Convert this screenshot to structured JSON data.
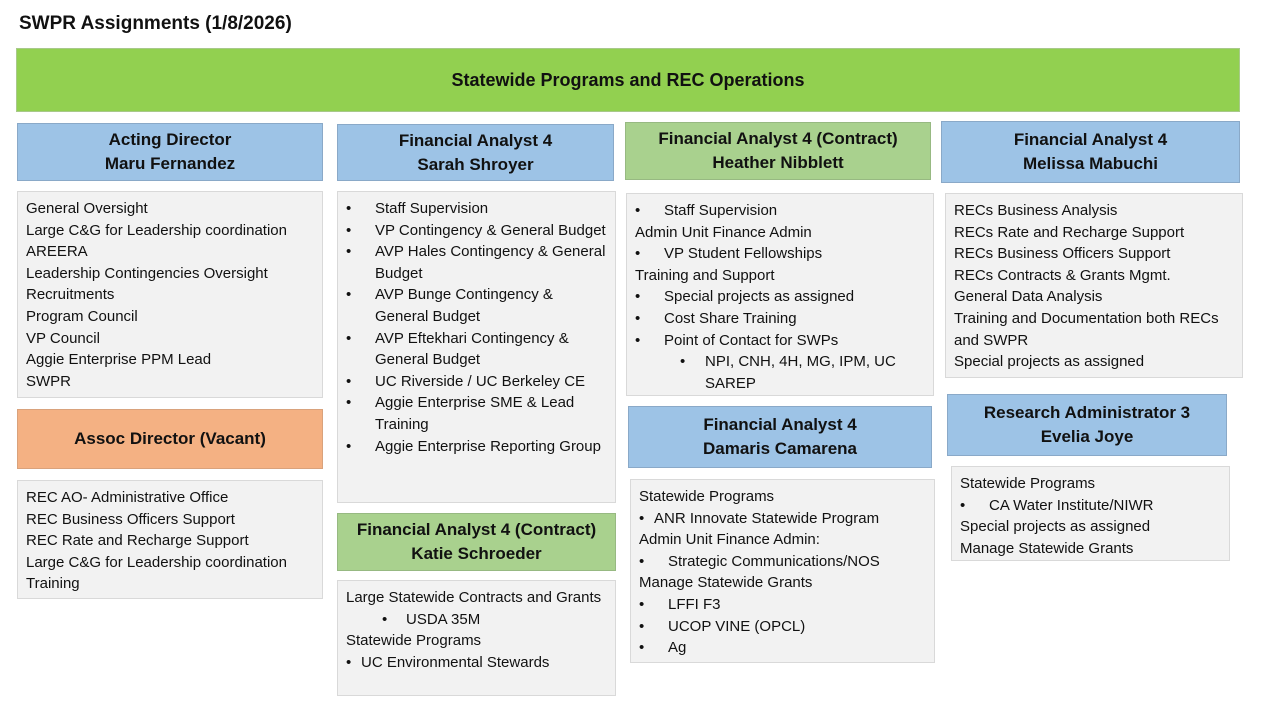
{
  "title": "SWPR Assignments (1/8/2026)",
  "banner": "Statewide Programs and REC Operations",
  "colors": {
    "banner": "#92d050",
    "blue_header": "#9dc3e6",
    "green_header": "#a9d18e",
    "orange_header": "#f4b183",
    "box": "#f2f2f2"
  },
  "boxes": [
    {
      "id": "fernandez",
      "role": "Acting Director",
      "name": "Maru Fernandez",
      "color": "blue",
      "lines": [
        {
          "t": "General Oversight",
          "s": ""
        },
        {
          "t": "Large C&G for Leadership coordination",
          "s": ""
        },
        {
          "t": "AREERA",
          "s": ""
        },
        {
          "t": "Leadership Contingencies Oversight",
          "s": ""
        },
        {
          "t": "Recruitments",
          "s": ""
        },
        {
          "t": "Program Council",
          "s": ""
        },
        {
          "t": "VP Council",
          "s": ""
        },
        {
          "t": "Aggie Enterprise PPM Lead",
          "s": ""
        },
        {
          "t": "SWPR",
          "s": ""
        }
      ]
    },
    {
      "id": "assoc",
      "role": "Assoc Director (Vacant)",
      "name": "",
      "color": "orange",
      "lines": [
        {
          "t": "REC AO- Administrative Office",
          "s": ""
        },
        {
          "t": "REC Business Officers Support",
          "s": ""
        },
        {
          "t": "REC Rate and Recharge Support",
          "s": ""
        },
        {
          "t": "Large C&G for Leadership coordination",
          "s": ""
        },
        {
          "t": "Training",
          "s": ""
        }
      ]
    },
    {
      "id": "shroyer",
      "role": "Financial Analyst 4",
      "name": "Sarah Shroyer",
      "color": "blue",
      "lines": [
        {
          "t": "Staff Supervision",
          "s": "b"
        },
        {
          "t": "VP Contingency & General Budget",
          "s": "b"
        },
        {
          "t": "AVP Hales Contingency & General Budget",
          "s": "b"
        },
        {
          "t": "AVP Bunge Contingency & General Budget",
          "s": "b"
        },
        {
          "t": "AVP Eftekhari Contingency & General Budget",
          "s": "b"
        },
        {
          "t": "UC Riverside / UC Berkeley CE",
          "s": "b"
        },
        {
          "t": "Aggie Enterprise SME & Lead Training",
          "s": "b"
        },
        {
          "t": "Aggie Enterprise Reporting Group",
          "s": "b"
        }
      ]
    },
    {
      "id": "schroeder",
      "role": "Financial Analyst 4 (Contract)",
      "name": "Katie Schroeder",
      "color": "lgreen",
      "lines": [
        {
          "t": "Large Statewide Contracts and Grants",
          "s": ""
        },
        {
          "t": "USDA 35M",
          "s": "b2t"
        },
        {
          "t": "Statewide Programs",
          "s": ""
        },
        {
          "t": "UC Environmental Stewards",
          "s": "bt"
        }
      ]
    },
    {
      "id": "nibblett",
      "role": "Financial Analyst 4 (Contract)",
      "name": "Heather Nibblett",
      "color": "lgreen",
      "lines": [
        {
          "t": "Staff Supervision",
          "s": "bw"
        },
        {
          "t": "Admin Unit Finance Admin",
          "s": ""
        },
        {
          "t": "VP Student Fellowships",
          "s": "bw"
        },
        {
          "t": "Training and Support",
          "s": ""
        },
        {
          "t": "Special projects as assigned",
          "s": "b"
        },
        {
          "t": "Cost Share Training",
          "s": "b"
        },
        {
          "t": "Point of Contact for SWPs",
          "s": "b"
        },
        {
          "t": "NPI, CNH, 4H, MG, IPM, UC SAREP",
          "s": "b2"
        }
      ]
    },
    {
      "id": "camarena",
      "role": "Financial Analyst 4",
      "name": "Damaris Camarena",
      "color": "blue",
      "lines": [
        {
          "t": "Statewide Programs",
          "s": ""
        },
        {
          "t": "ANR Innovate Statewide Program",
          "s": "bt"
        },
        {
          "t": "Admin Unit Finance Admin:",
          "s": ""
        },
        {
          "t": "Strategic Communications/NOS",
          "s": "b"
        },
        {
          "t": "Manage Statewide Grants",
          "s": ""
        },
        {
          "t": "LFFI F3",
          "s": "b"
        },
        {
          "t": "UCOP VINE (OPCL)",
          "s": "b"
        },
        {
          "t": "Ag",
          "s": "b"
        }
      ]
    },
    {
      "id": "mabuchi",
      "role": "Financial Analyst 4",
      "name": "Melissa Mabuchi",
      "color": "blue",
      "lines": [
        {
          "t": "RECs Business Analysis",
          "s": ""
        },
        {
          "t": "RECs Rate and Recharge Support",
          "s": ""
        },
        {
          "t": "RECs Business Officers Support",
          "s": ""
        },
        {
          "t": "RECs Contracts & Grants Mgmt.",
          "s": ""
        },
        {
          "t": "General Data Analysis",
          "s": ""
        },
        {
          "t": "Training and Documentation both RECs and SWPR",
          "s": ""
        },
        {
          "t": "Special projects as assigned",
          "s": ""
        }
      ]
    },
    {
      "id": "joye",
      "role": "Research Administrator 3",
      "name": "Evelia Joye",
      "color": "blue",
      "lines": [
        {
          "t": "Statewide Programs",
          "s": ""
        },
        {
          "t": "CA Water Institute/NIWR",
          "s": "b"
        },
        {
          "t": "Special projects as assigned",
          "s": ""
        },
        {
          "t": "Manage Statewide Grants",
          "s": ""
        }
      ]
    }
  ]
}
